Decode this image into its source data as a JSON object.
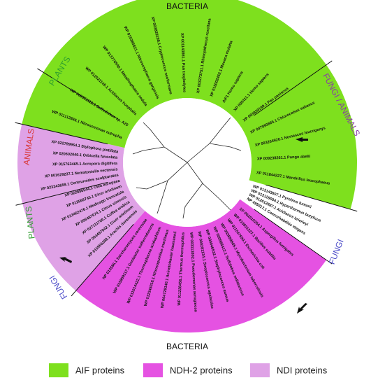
{
  "group_labels": [
    {
      "text": "BACTERIA",
      "color": "#111111"
    },
    {
      "text": "PLANTS",
      "color": "#2e9e2e"
    },
    {
      "text": "FUNGI / ANIMALS",
      "color": "#8a3aa8"
    },
    {
      "text": "ANIMALS",
      "color": "#d83a3a"
    },
    {
      "text": "PLANTS",
      "color": "#2e9e2e"
    },
    {
      "text": "FUNGI",
      "color": "#4a4ac8"
    },
    {
      "text": "BACTERIA",
      "color": "#111111"
    },
    {
      "text": "FUNGI",
      "color": "#4a4ac8"
    }
  ],
  "legend": [
    {
      "label": "AIF proteins",
      "color": "#7ee01e"
    },
    {
      "label": "NDH-2 proteins",
      "color": "#e552e2"
    },
    {
      "label": "NDI proteins",
      "color": "#dfa2e6"
    }
  ],
  "leaves": {
    "aif": [
      "WP 011112866.1 Nitrosomonas eutropha",
      "WP 066951112.1 Sulfodiskus sp. A20",
      "WP 012021145.1 Acidianus hospitalis",
      "WP 013776540.1 Metallosphaera sedula",
      "WP 015385821.1 Nitrososphaera gargensis",
      "XP 003829198.1 Cryptococcus neoformans",
      "XP 001143861.1 Pan troglodytes",
      "XP 003273751.1 Rhinopithecus roxellana",
      "XP 015002462.1 Macaca mulatta",
      "AIF1 Homo sapiens",
      "XP 005411.1 Homo sapiens",
      "XP 003829199.1 Pan paniscus",
      "XP 007990865.1 Chlorocebus sabaeus",
      "XP 003264920.1 Nomascus leucogenys",
      "XP 009238261.1 Pongo abelii",
      "XP 011844227.1 Mandrillus leucophaeus"
    ],
    "gap": [
      "WP 013143607.1 Pyrobius fumarii",
      "WP 013129004.1 Hyperthermus butylicus",
      "WP 012612687.1 Acidianus brierleyi",
      "NP 495917.1 Caenorhabditis elegans"
    ],
    "ndh2": [
      "XP 001910254.1 Aspergillus fumigatus",
      "WP 010931227.1 Bacillus subtilis",
      "WP 011547690.1 Escherichia coli",
      "WP 003899865.1 Mycobacterium tuberculosis",
      "WP 009988412.1 Sulfolobus solfataricus",
      "WP 000046532.1 Staphylococcus aureus",
      "WP 000281134.1 Streptococcus agalactiae",
      "WP 003113802.1 Pseudomonas aeruginosa",
      "WP 011228456.1 Thermus thermophilus",
      "WP 004729140.1 Acinetobacter baumannii",
      "WP 012345018.1 Nitrosopumilus maritimus",
      "WP 011014422.1 Thermoplasma acidophilum",
      "WP 015859117.1 Geobacter sulfurreducens",
      "NP 013586.1 Saccharomyces cerevisiae"
    ],
    "ndi": [
      "XP 015956288.1 Arachis duranensis",
      "XP 004497942.1 Cicer arietinum",
      "XP 027111709.1 Coffea arabica",
      "XP 006487674.1 Citrus sinensis",
      "XP 013462476.1 Medicago truncatula",
      "XP 012568745.1 Cicer arietinum",
      "XP 022886544.1 Olea europaea",
      "XP 023243659.1 Centruroides sculpturatus",
      "XP 001629237.1 Nematostella vectensis",
      "XP 015763465.1 Acropora digitifera",
      "XP 020602040.1 Orbicella faveolata",
      "XP 022799964.1 Stylophora pistillata"
    ]
  }
}
